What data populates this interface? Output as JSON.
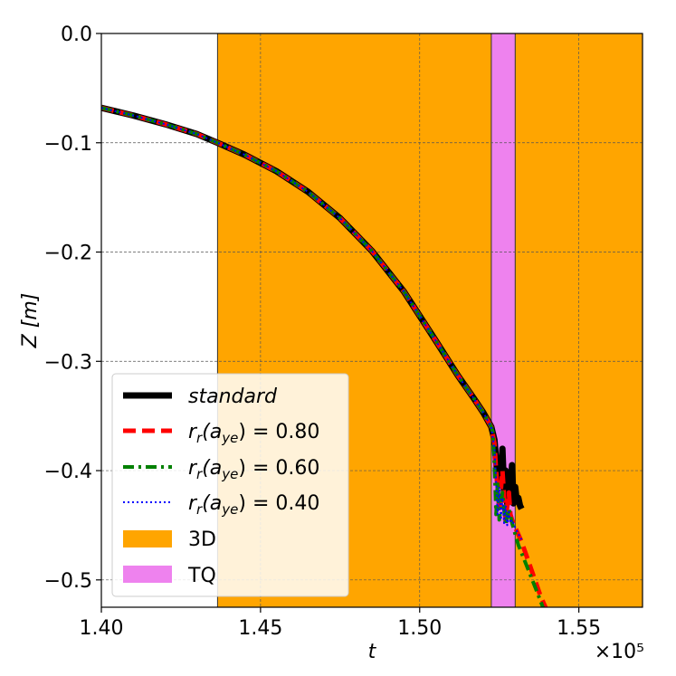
{
  "chart_data": {
    "type": "line",
    "xlabel": "t",
    "ylabel": "Z [m]",
    "x_multiplier_label": "×10⁵",
    "xlim": [
      1.4,
      1.57
    ],
    "ylim": [
      -0.525,
      0.0
    ],
    "x_ticks": [
      1.4,
      1.45,
      1.5,
      1.55
    ],
    "x_tick_labels": [
      "1.40",
      "1.45",
      "1.50",
      "1.55"
    ],
    "y_ticks": [
      0.0,
      -0.1,
      -0.2,
      -0.3,
      -0.4,
      -0.5
    ],
    "y_tick_labels": [
      "0.0",
      "−0.1",
      "−0.2",
      "−0.3",
      "−0.4",
      "−0.5"
    ],
    "grid": true,
    "legend_position": "lower-left",
    "regions": [
      {
        "name": "3D",
        "x_start": 1.4365,
        "x_end": 1.57,
        "color": "#ffa500"
      },
      {
        "name": "TQ",
        "x_start": 1.5225,
        "x_end": 1.53,
        "color": "#ee82ee"
      }
    ],
    "series": [
      {
        "name": "standard",
        "color": "#000000",
        "style": "solid",
        "x": [
          1.4,
          1.41,
          1.42,
          1.43,
          1.4365,
          1.445,
          1.455,
          1.465,
          1.475,
          1.485,
          1.495,
          1.505,
          1.512,
          1.517,
          1.52,
          1.5225,
          1.5235,
          1.524,
          1.5245,
          1.525,
          1.5255,
          1.526,
          1.5265,
          1.527,
          1.5275,
          1.528,
          1.5285,
          1.529,
          1.5295,
          1.53,
          1.5305,
          1.531,
          1.5315,
          1.532
        ],
        "y": [
          -0.068,
          -0.075,
          -0.083,
          -0.092,
          -0.1,
          -0.111,
          -0.126,
          -0.145,
          -0.169,
          -0.199,
          -0.236,
          -0.281,
          -0.313,
          -0.334,
          -0.347,
          -0.36,
          -0.372,
          -0.39,
          -0.405,
          -0.392,
          -0.41,
          -0.38,
          -0.42,
          -0.4,
          -0.43,
          -0.405,
          -0.425,
          -0.395,
          -0.43,
          -0.415,
          -0.428,
          -0.425,
          -0.432,
          -0.435
        ]
      },
      {
        "name": "r_r(a_ye) = 0.80",
        "color": "#ff0000",
        "style": "dashed",
        "x": [
          1.4,
          1.41,
          1.42,
          1.43,
          1.4365,
          1.445,
          1.455,
          1.465,
          1.475,
          1.485,
          1.495,
          1.505,
          1.512,
          1.517,
          1.52,
          1.5225,
          1.5235,
          1.524,
          1.525,
          1.526,
          1.527,
          1.528,
          1.5285,
          1.529,
          1.53,
          1.532,
          1.535,
          1.538,
          1.541
        ],
        "y": [
          -0.068,
          -0.075,
          -0.083,
          -0.092,
          -0.1,
          -0.111,
          -0.126,
          -0.145,
          -0.169,
          -0.199,
          -0.236,
          -0.281,
          -0.313,
          -0.334,
          -0.347,
          -0.36,
          -0.375,
          -0.4,
          -0.435,
          -0.4,
          -0.445,
          -0.42,
          -0.44,
          -0.445,
          -0.452,
          -0.465,
          -0.49,
          -0.515,
          -0.535
        ]
      },
      {
        "name": "r_r(a_ye) = 0.60",
        "color": "#008000",
        "style": "dashdot",
        "x": [
          1.4,
          1.41,
          1.42,
          1.43,
          1.4365,
          1.445,
          1.455,
          1.465,
          1.475,
          1.485,
          1.495,
          1.505,
          1.512,
          1.517,
          1.52,
          1.5225,
          1.523,
          1.5235,
          1.524,
          1.5245,
          1.525,
          1.526,
          1.527,
          1.528,
          1.529,
          1.531,
          1.534,
          1.537,
          1.54
        ],
        "y": [
          -0.068,
          -0.075,
          -0.083,
          -0.092,
          -0.1,
          -0.111,
          -0.126,
          -0.145,
          -0.169,
          -0.199,
          -0.236,
          -0.281,
          -0.313,
          -0.334,
          -0.347,
          -0.36,
          -0.365,
          -0.395,
          -0.44,
          -0.41,
          -0.445,
          -0.42,
          -0.45,
          -0.435,
          -0.448,
          -0.468,
          -0.49,
          -0.512,
          -0.535
        ]
      },
      {
        "name": "r_r(a_ye) = 0.40",
        "color": "#0000ff",
        "style": "dotted",
        "x": [
          1.4,
          1.41,
          1.42,
          1.43,
          1.4365,
          1.445,
          1.455,
          1.465,
          1.475,
          1.485,
          1.495,
          1.505,
          1.512,
          1.517,
          1.52,
          1.5225,
          1.5235,
          1.524,
          1.5245,
          1.525,
          1.5255,
          1.526,
          1.5265,
          1.527,
          1.5275,
          1.528,
          1.5285,
          1.529,
          1.53,
          1.531,
          1.532
        ],
        "y": [
          -0.068,
          -0.075,
          -0.083,
          -0.092,
          -0.1,
          -0.111,
          -0.126,
          -0.145,
          -0.169,
          -0.199,
          -0.236,
          -0.281,
          -0.313,
          -0.334,
          -0.347,
          -0.36,
          -0.38,
          -0.41,
          -0.44,
          -0.415,
          -0.445,
          -0.425,
          -0.448,
          -0.432,
          -0.45,
          -0.438,
          -0.448,
          -0.445,
          -0.452,
          -0.458,
          -0.463
        ]
      }
    ]
  },
  "legend": {
    "standard_label": "standard",
    "rr_prefix": "r",
    "rr_sub1": "r",
    "rr_paren_open": "(a",
    "rr_sub2": "ye",
    "rr_paren_close": ")",
    "rr_080_value": " = 0.80",
    "rr_060_value": " = 0.60",
    "rr_040_value": " = 0.40",
    "label_3d": "3D",
    "label_tq": "TQ"
  }
}
